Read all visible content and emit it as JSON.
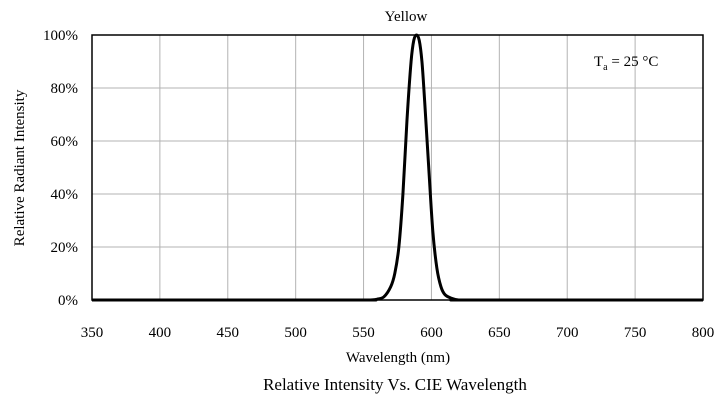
{
  "chart_data": {
    "type": "line",
    "title": "Yellow",
    "caption": "Relative Intensity Vs. CIE Wavelength",
    "xlabel": "Wavelength (nm)",
    "ylabel": "Relative Radiant Intensity",
    "annotation": {
      "base": "T",
      "subscript": "a",
      "rest": " = 25 °C"
    },
    "xlim": [
      350,
      800
    ],
    "ylim": [
      0,
      100
    ],
    "x_ticks": [
      350,
      400,
      450,
      500,
      550,
      600,
      650,
      700,
      750,
      800
    ],
    "y_ticks": [
      0,
      20,
      40,
      60,
      80,
      100
    ],
    "y_tick_labels": [
      "0%",
      "20%",
      "40%",
      "60%",
      "80%",
      "100%"
    ],
    "grid": true,
    "series": [
      {
        "color": "#000000",
        "x": [
          350,
          540,
          555,
          560,
          565,
          570,
          573,
          576,
          579,
          582,
          585,
          587,
          589,
          591,
          593,
          595,
          598,
          601,
          604,
          607,
          610,
          615,
          620,
          630,
          800
        ],
        "y": [
          0,
          0,
          0,
          0.3,
          1.2,
          5,
          10,
          20,
          40,
          68,
          90,
          98,
          100,
          98,
          90,
          75,
          50,
          26,
          12,
          5,
          2,
          0.6,
          0,
          0,
          0
        ]
      }
    ]
  }
}
